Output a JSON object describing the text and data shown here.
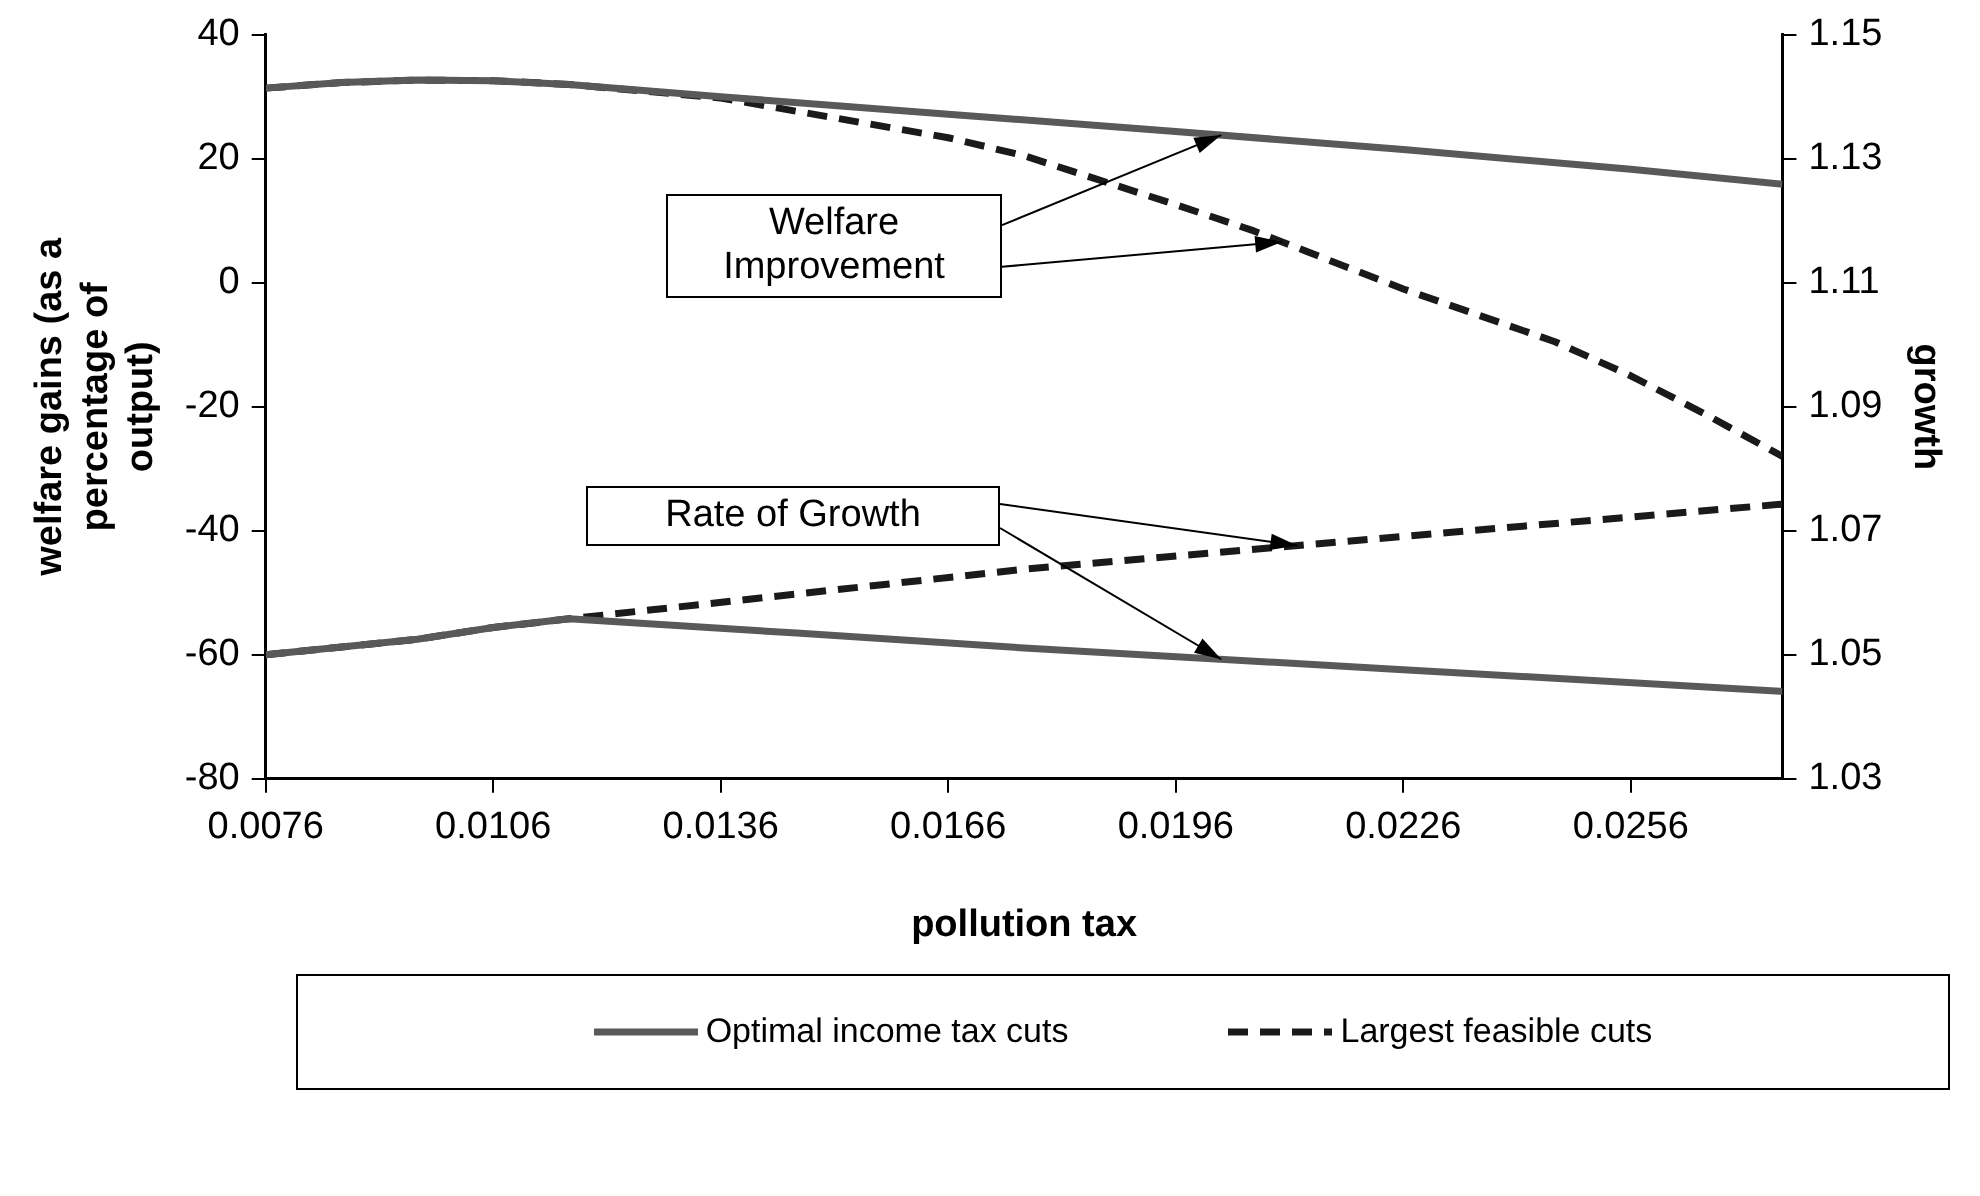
{
  "chart_data": {
    "type": "line",
    "xlabel": "pollution tax",
    "ylabel": "welfare gains (as a percentage of output)",
    "y2label": "growth",
    "xlim": [
      0.0076,
      0.0276
    ],
    "xticks": [
      {
        "value": 0.0076,
        "label": "0.0076"
      },
      {
        "value": 0.0106,
        "label": "0.0106"
      },
      {
        "value": 0.0136,
        "label": "0.0136"
      },
      {
        "value": 0.0166,
        "label": "0.0166"
      },
      {
        "value": 0.0196,
        "label": "0.0196"
      },
      {
        "value": 0.0226,
        "label": "0.0226"
      },
      {
        "value": 0.0256,
        "label": "0.0256"
      }
    ],
    "ylim": [
      -80,
      40
    ],
    "yticks": [
      -80,
      -60,
      -40,
      -20,
      0,
      20,
      40
    ],
    "y2lim": [
      1.03,
      1.15
    ],
    "y2ticks": [
      1.03,
      1.05,
      1.07,
      1.09,
      1.11,
      1.13,
      1.15
    ],
    "grid": false,
    "legend": "bottom",
    "marker": "none",
    "series": [
      {
        "name": "Optimal income tax cuts",
        "color": "#595959",
        "line_style": "solid",
        "x": [
          0.0076,
          0.0086,
          0.0096,
          0.0106,
          0.0116,
          0.0136,
          0.0166,
          0.0196,
          0.0226,
          0.0256,
          0.0276
        ],
        "values": [
          31.4,
          32.3,
          32.7,
          32.6,
          32,
          30,
          27.2,
          24.4,
          21.5,
          18.3,
          15.9
        ]
      },
      {
        "name": "Largest feasible cuts",
        "color": "#1a1a1a",
        "line_style": "dashed",
        "x": [
          0.0076,
          0.0086,
          0.0096,
          0.0106,
          0.0116,
          0.0136,
          0.0166,
          0.0176,
          0.0196,
          0.0206,
          0.0226,
          0.0246,
          0.0256,
          0.0266,
          0.0276
        ],
        "values": [
          31.4,
          32.3,
          32.7,
          32.6,
          32,
          29.8,
          23.4,
          20.5,
          12.6,
          8.5,
          -1,
          -9.5,
          -15,
          -21.3,
          -28
        ]
      },
      {
        "color": "#595959",
        "line_style": "solid",
        "axis": "y2",
        "x": [
          0.0076,
          0.0096,
          0.0106,
          0.0116,
          0.0146,
          0.0176,
          0.0226,
          0.0276
        ],
        "values": [
          1.05,
          1.0525,
          1.0544,
          1.0558,
          1.0535,
          1.0511,
          1.0476,
          1.0441
        ]
      },
      {
        "color": "#1a1a1a",
        "line_style": "dashed",
        "axis": "y2",
        "x": [
          0.0076,
          0.0096,
          0.0106,
          0.0116,
          0.0146,
          0.0176,
          0.0226,
          0.0276
        ],
        "values": [
          1.05,
          1.0525,
          1.0544,
          1.0558,
          1.0598,
          1.0638,
          1.0691,
          1.0743
        ]
      }
    ],
    "annotations": [
      "Welfare Improvement",
      "Rate of Growth"
    ]
  }
}
